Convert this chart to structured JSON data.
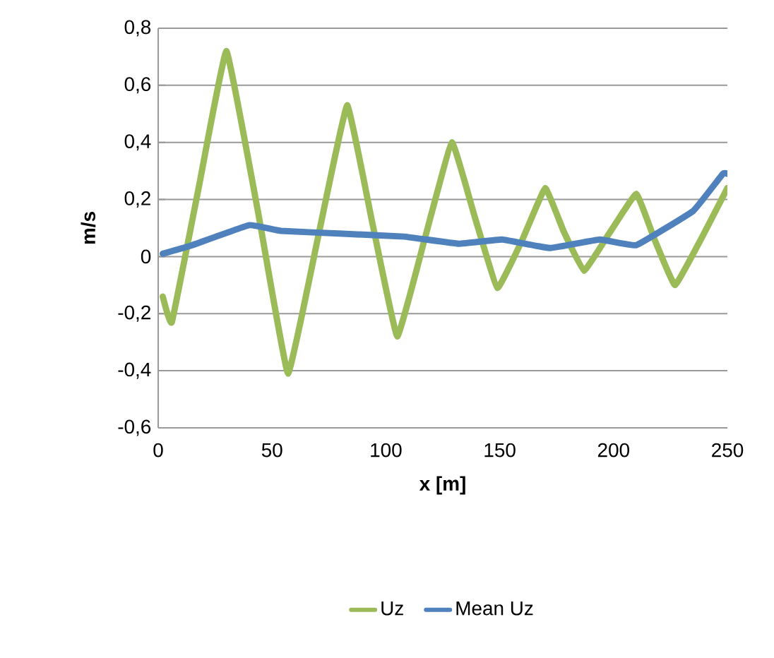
{
  "chart_data": {
    "type": "line",
    "xlabel": "x [m]",
    "ylabel": "m/s",
    "xlim": [
      0,
      250
    ],
    "xticks": [
      0,
      50,
      100,
      150,
      200,
      250
    ],
    "ylim": [
      -0.6,
      0.8
    ],
    "yticks": [
      {
        "value": -0.6,
        "label": "-0,6"
      },
      {
        "value": -0.4,
        "label": "-0,4"
      },
      {
        "value": -0.2,
        "label": "-0,2"
      },
      0,
      {
        "value": 0.2,
        "label": "0,2"
      },
      {
        "value": 0.4,
        "label": "0,4"
      },
      {
        "value": 0.6,
        "label": "0,6"
      },
      {
        "value": 0.8,
        "label": "0,8"
      }
    ],
    "grid": "y",
    "legend": "bottom",
    "marker": "none",
    "line_style": "solid",
    "series": [
      {
        "name": "Uz",
        "color": "#9bbb59",
        "x": [
          2,
          6,
          18,
          30,
          44,
          57,
          70,
          83,
          94,
          105,
          117,
          129,
          139,
          149,
          160,
          170,
          178,
          187,
          198,
          210,
          218,
          227,
          239,
          250
        ],
        "values": [
          -0.14,
          -0.23,
          0.25,
          0.72,
          0.15,
          -0.41,
          0.06,
          0.53,
          0.12,
          -0.28,
          0.06,
          0.4,
          0.14,
          -0.11,
          0.06,
          0.24,
          0.09,
          -0.05,
          0.08,
          0.22,
          0.06,
          -0.1,
          0.07,
          0.24
        ]
      },
      {
        "name": "Mean Uz",
        "color": "#4f81bd",
        "x": [
          2,
          15,
          40,
          54,
          81,
          108,
          132,
          151,
          172,
          194,
          210,
          235,
          248,
          250
        ],
        "values": [
          0.01,
          0.04,
          0.11,
          0.09,
          0.08,
          0.07,
          0.045,
          0.06,
          0.03,
          0.06,
          0.04,
          0.16,
          0.29,
          0.29
        ]
      }
    ]
  }
}
